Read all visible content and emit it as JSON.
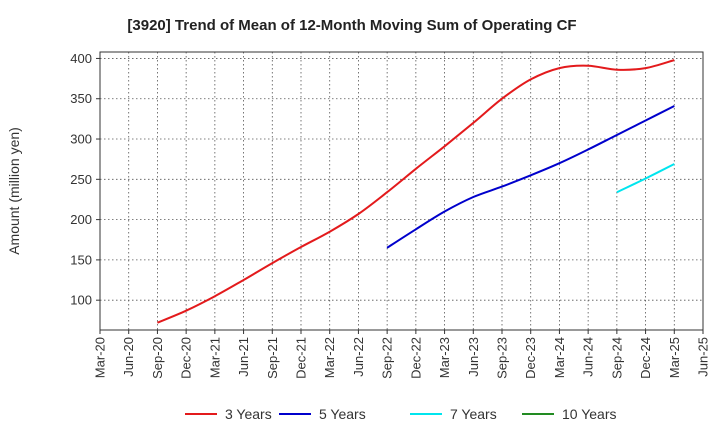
{
  "chart_data": {
    "type": "line",
    "title": "[3920]  Trend of Mean of 12-Month Moving Sum of Operating CF",
    "xlabel": "",
    "ylabel": "Amount (million yen)",
    "ylim": [
      63,
      408
    ],
    "yticks": [
      100,
      150,
      200,
      250,
      300,
      350,
      400
    ],
    "grid": true,
    "legend_position": "bottom",
    "categories": [
      "Mar-20",
      "Jun-20",
      "Sep-20",
      "Dec-20",
      "Mar-21",
      "Jun-21",
      "Sep-21",
      "Dec-21",
      "Mar-22",
      "Jun-22",
      "Sep-22",
      "Dec-22",
      "Mar-23",
      "Jun-23",
      "Sep-23",
      "Dec-23",
      "Mar-24",
      "Jun-24",
      "Sep-24",
      "Dec-24",
      "Mar-25",
      "Jun-25"
    ],
    "series": [
      {
        "name": "3 Years",
        "color": "#e31a1c",
        "values": [
          null,
          null,
          72,
          87,
          105,
          125,
          146,
          166,
          185,
          207,
          234,
          263,
          291,
          320,
          350,
          374,
          388,
          391,
          386,
          388,
          398,
          null
        ]
      },
      {
        "name": "5 Years",
        "color": "#0000cc",
        "values": [
          null,
          null,
          null,
          null,
          null,
          null,
          null,
          null,
          null,
          null,
          165,
          188,
          210,
          228,
          241,
          255,
          270,
          287,
          305,
          323,
          341,
          null
        ]
      },
      {
        "name": "7 Years",
        "color": "#00e5ee",
        "values": [
          null,
          null,
          null,
          null,
          null,
          null,
          null,
          null,
          null,
          null,
          null,
          null,
          null,
          null,
          null,
          null,
          null,
          null,
          234,
          251,
          269,
          null
        ]
      },
      {
        "name": "10 Years",
        "color": "#228b22",
        "values": [
          null,
          null,
          null,
          null,
          null,
          null,
          null,
          null,
          null,
          null,
          null,
          null,
          null,
          null,
          null,
          null,
          null,
          null,
          null,
          null,
          null,
          null
        ]
      }
    ]
  }
}
